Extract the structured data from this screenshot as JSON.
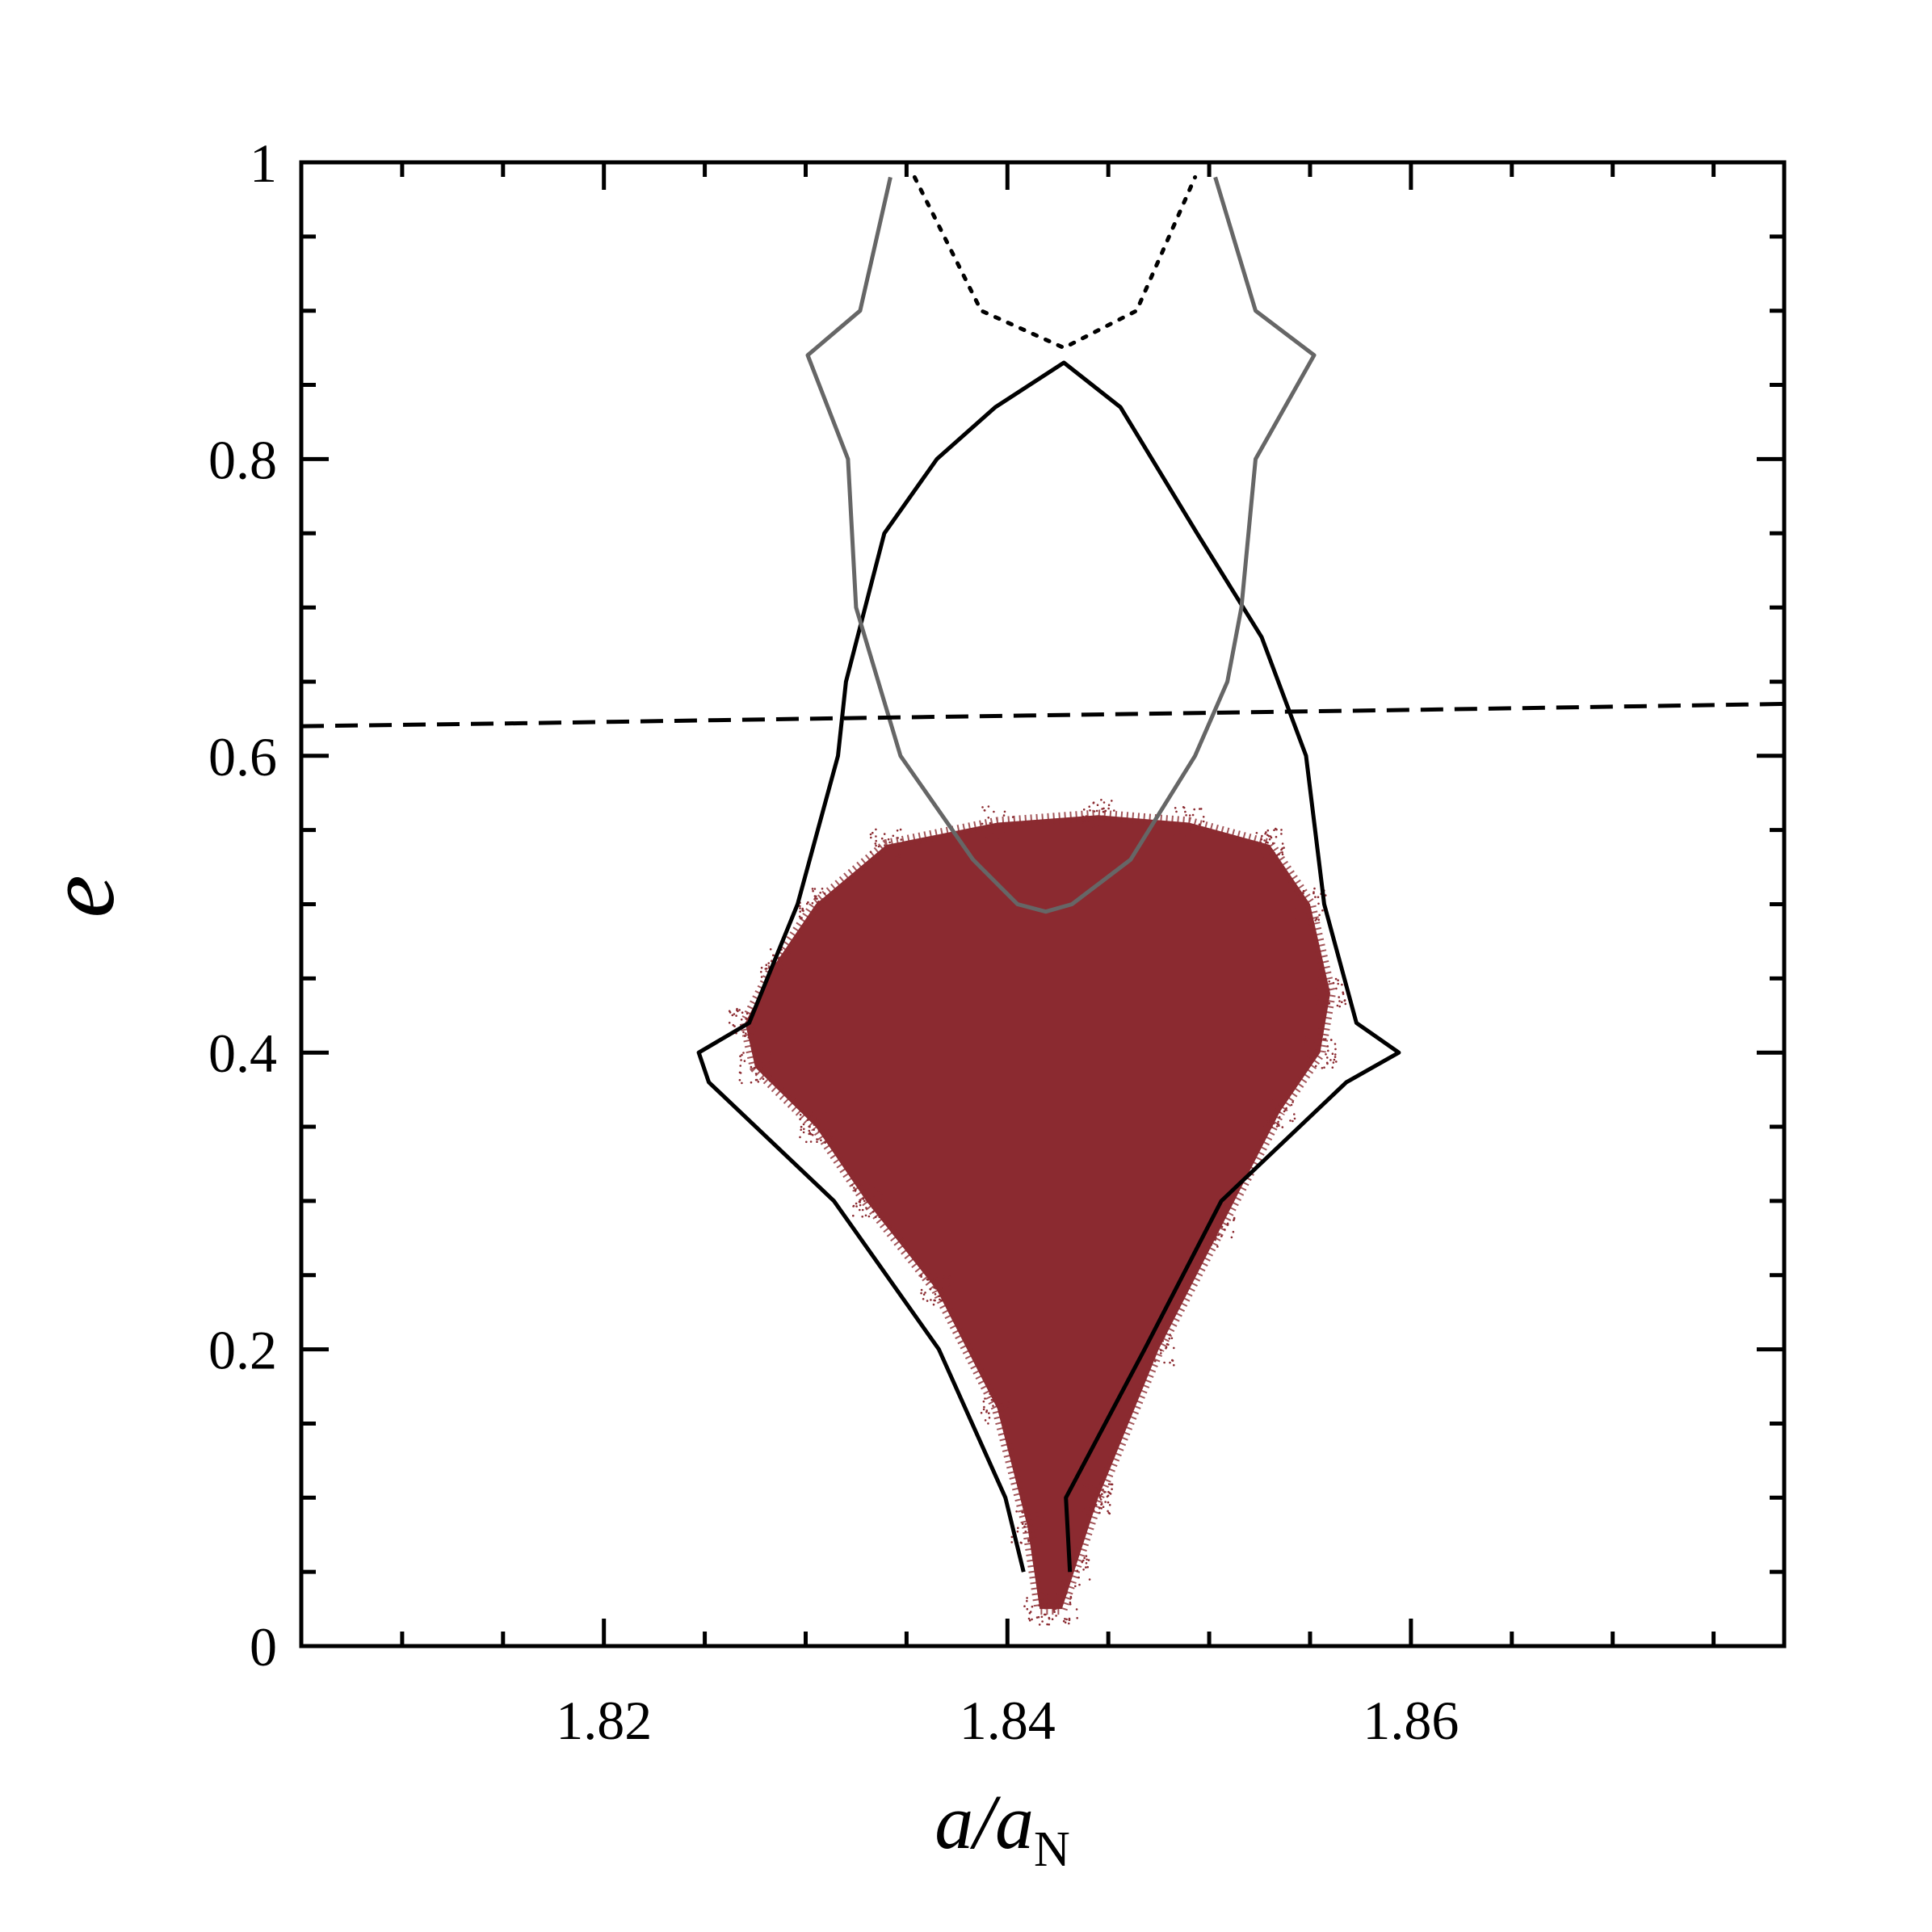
{
  "chart_data": {
    "type": "scatter",
    "xlabel": "a/a",
    "xlabel_subscript": "N",
    "ylabel": "e",
    "xlim": [
      1.805,
      1.8785
    ],
    "ylim": [
      0,
      1
    ],
    "x_ticks": [
      {
        "value": 1.82,
        "label": "1.82"
      },
      {
        "value": 1.84,
        "label": "1.84"
      },
      {
        "value": 1.86,
        "label": "1.86"
      }
    ],
    "x_minor_ticks": [
      1.81,
      1.815,
      1.825,
      1.83,
      1.835,
      1.845,
      1.85,
      1.855,
      1.865,
      1.87,
      1.875
    ],
    "y_ticks": [
      {
        "value": 0,
        "label": "0"
      },
      {
        "value": 0.2,
        "label": "0.2"
      },
      {
        "value": 0.4,
        "label": "0.4"
      },
      {
        "value": 0.6,
        "label": "0.6"
      },
      {
        "value": 0.8,
        "label": "0.8"
      },
      {
        "value": 1,
        "label": "1"
      }
    ],
    "y_minor_ticks": [
      0.05,
      0.1,
      0.15,
      0.25,
      0.3,
      0.35,
      0.45,
      0.5,
      0.55,
      0.65,
      0.7,
      0.75,
      0.85,
      0.9,
      0.95
    ],
    "grid": false,
    "series": [
      {
        "kind": "scatter-cloud",
        "color": "#8b2a30",
        "outline": [
          [
            1.8427,
            0.025
          ],
          [
            1.8433,
            0.05
          ],
          [
            1.8445,
            0.1
          ],
          [
            1.8475,
            0.2
          ],
          [
            1.8505,
            0.28
          ],
          [
            1.8535,
            0.36
          ],
          [
            1.8555,
            0.4
          ],
          [
            1.856,
            0.44
          ],
          [
            1.855,
            0.5
          ],
          [
            1.853,
            0.54
          ],
          [
            1.849,
            0.555
          ],
          [
            1.8445,
            0.56
          ],
          [
            1.8395,
            0.555
          ],
          [
            1.834,
            0.54
          ],
          [
            1.8305,
            0.5
          ],
          [
            1.8285,
            0.46
          ],
          [
            1.827,
            0.42
          ],
          [
            1.8275,
            0.39
          ],
          [
            1.8305,
            0.35
          ],
          [
            1.833,
            0.3
          ],
          [
            1.8365,
            0.24
          ],
          [
            1.8395,
            0.16
          ],
          [
            1.841,
            0.08
          ],
          [
            1.8416,
            0.025
          ]
        ]
      },
      {
        "kind": "line",
        "style": "solid",
        "color": "#000000",
        "points": [
          [
            1.8408,
            0.05
          ],
          [
            1.8399,
            0.1
          ],
          [
            1.8366,
            0.2
          ],
          [
            1.8314,
            0.3
          ],
          [
            1.8252,
            0.38
          ],
          [
            1.8247,
            0.4
          ],
          [
            1.8272,
            0.42
          ],
          [
            1.8296,
            0.5
          ],
          [
            1.8316,
            0.6
          ],
          [
            1.832,
            0.65
          ],
          [
            1.8339,
            0.75
          ],
          [
            1.8365,
            0.8
          ],
          [
            1.8394,
            0.835
          ],
          [
            1.8428,
            0.865
          ],
          [
            1.8456,
            0.835
          ],
          [
            1.8494,
            0.75
          ],
          [
            1.8526,
            0.68
          ],
          [
            1.8548,
            0.6
          ],
          [
            1.8557,
            0.5
          ],
          [
            1.8573,
            0.42
          ],
          [
            1.8594,
            0.4
          ],
          [
            1.8568,
            0.38
          ],
          [
            1.8506,
            0.3
          ],
          [
            1.8468,
            0.2
          ],
          [
            1.8429,
            0.1
          ],
          [
            1.8431,
            0.05
          ]
        ]
      },
      {
        "kind": "line",
        "style": "solid",
        "color": "#666666",
        "points": [
          [
            1.8342,
            0.99
          ],
          [
            1.8327,
            0.9
          ],
          [
            1.8301,
            0.87
          ],
          [
            1.8321,
            0.8
          ],
          [
            1.8325,
            0.7
          ],
          [
            1.8347,
            0.6
          ],
          [
            1.8383,
            0.53
          ],
          [
            1.8405,
            0.5
          ],
          [
            1.8419,
            0.495
          ],
          [
            1.8432,
            0.5
          ],
          [
            1.8461,
            0.53
          ],
          [
            1.8493,
            0.6
          ],
          [
            1.8509,
            0.65
          ],
          [
            1.8516,
            0.7
          ],
          [
            1.8523,
            0.8
          ],
          [
            1.8552,
            0.87
          ],
          [
            1.8523,
            0.9
          ],
          [
            1.8503,
            0.99
          ]
        ]
      },
      {
        "kind": "line",
        "style": "dotted",
        "color": "#000000",
        "points": [
          [
            1.8354,
            0.99
          ],
          [
            1.8387,
            0.9
          ],
          [
            1.8428,
            0.875
          ],
          [
            1.8464,
            0.9
          ],
          [
            1.8493,
            0.99
          ]
        ]
      },
      {
        "kind": "line",
        "style": "dashed",
        "color": "#000000",
        "points": [
          [
            1.805,
            0.62
          ],
          [
            1.816,
            0.622
          ],
          [
            1.83,
            0.625
          ],
          [
            1.845,
            0.628
          ],
          [
            1.85,
            0.629
          ],
          [
            1.86,
            0.631
          ],
          [
            1.8785,
            0.635
          ]
        ]
      }
    ]
  }
}
